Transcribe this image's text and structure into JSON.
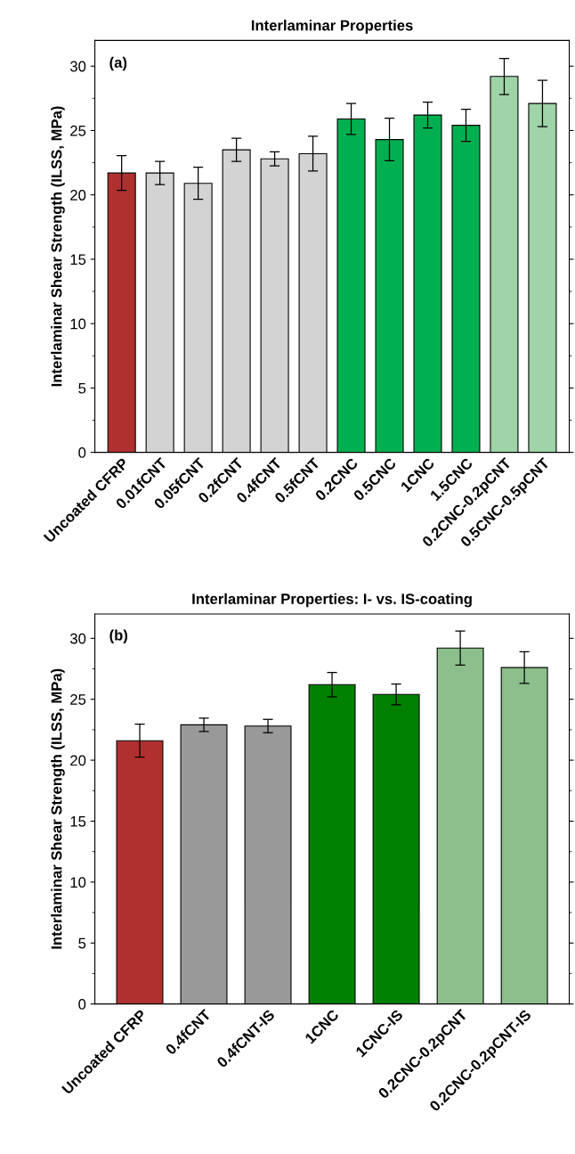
{
  "chart_data": [
    {
      "type": "bar",
      "title": "Interlaminar Properties",
      "ylabel": "Interlaminar Shear Strength (ILSS, MPa)",
      "annotations": [
        "(a)"
      ],
      "categories": [
        "Uncoated CFRP",
        "0.01fCNT",
        "0.05fCNT",
        "0.2fCNT",
        "0.4fCNT",
        "0.5fCNT",
        "0.2CNC",
        "0.5CNC",
        "1CNC",
        "1.5CNC",
        "0.2CNC-0.2pCNT",
        "0.5CNC-0.5pCNT"
      ],
      "values": [
        21.7,
        21.7,
        20.9,
        23.5,
        22.8,
        23.2,
        25.9,
        24.3,
        26.2,
        25.4,
        29.2,
        27.1
      ],
      "errors": [
        1.35,
        0.9,
        1.25,
        0.9,
        0.55,
        1.35,
        1.2,
        1.65,
        1.0,
        1.25,
        1.4,
        1.8
      ],
      "colors": [
        "#b03030",
        "#d3d3d3",
        "#d3d3d3",
        "#d3d3d3",
        "#d3d3d3",
        "#d3d3d3",
        "#00b050",
        "#00b050",
        "#00b050",
        "#00b050",
        "#9fd3a8",
        "#9fd3a8"
      ],
      "ylim": [
        0,
        32
      ],
      "yticks": [
        0,
        5,
        10,
        15,
        20,
        25,
        30
      ],
      "grid": false
    },
    {
      "type": "bar",
      "title": "Interlaminar Properties: I- vs. IS-coating",
      "ylabel": "Interlaminar Shear Strength (ILSS, MPa)",
      "annotations": [
        "(b)"
      ],
      "categories": [
        "Uncoated CFRP",
        "0.4fCNT",
        "0.4fCNT-IS",
        "1CNC",
        "1CNC-IS",
        "0.2CNC-0.2pCNT",
        "0.2CNC-0.2pCNT-IS"
      ],
      "values": [
        21.6,
        22.9,
        22.8,
        26.2,
        25.4,
        29.2,
        27.6
      ],
      "errors": [
        1.35,
        0.55,
        0.55,
        1.0,
        0.85,
        1.4,
        1.3
      ],
      "colors": [
        "#b03030",
        "#999999",
        "#999999",
        "#008000",
        "#008000",
        "#8cbf8c",
        "#8cbf8c"
      ],
      "ylim": [
        0,
        32
      ],
      "yticks": [
        0,
        5,
        10,
        15,
        20,
        25,
        30
      ],
      "grid": false
    }
  ]
}
